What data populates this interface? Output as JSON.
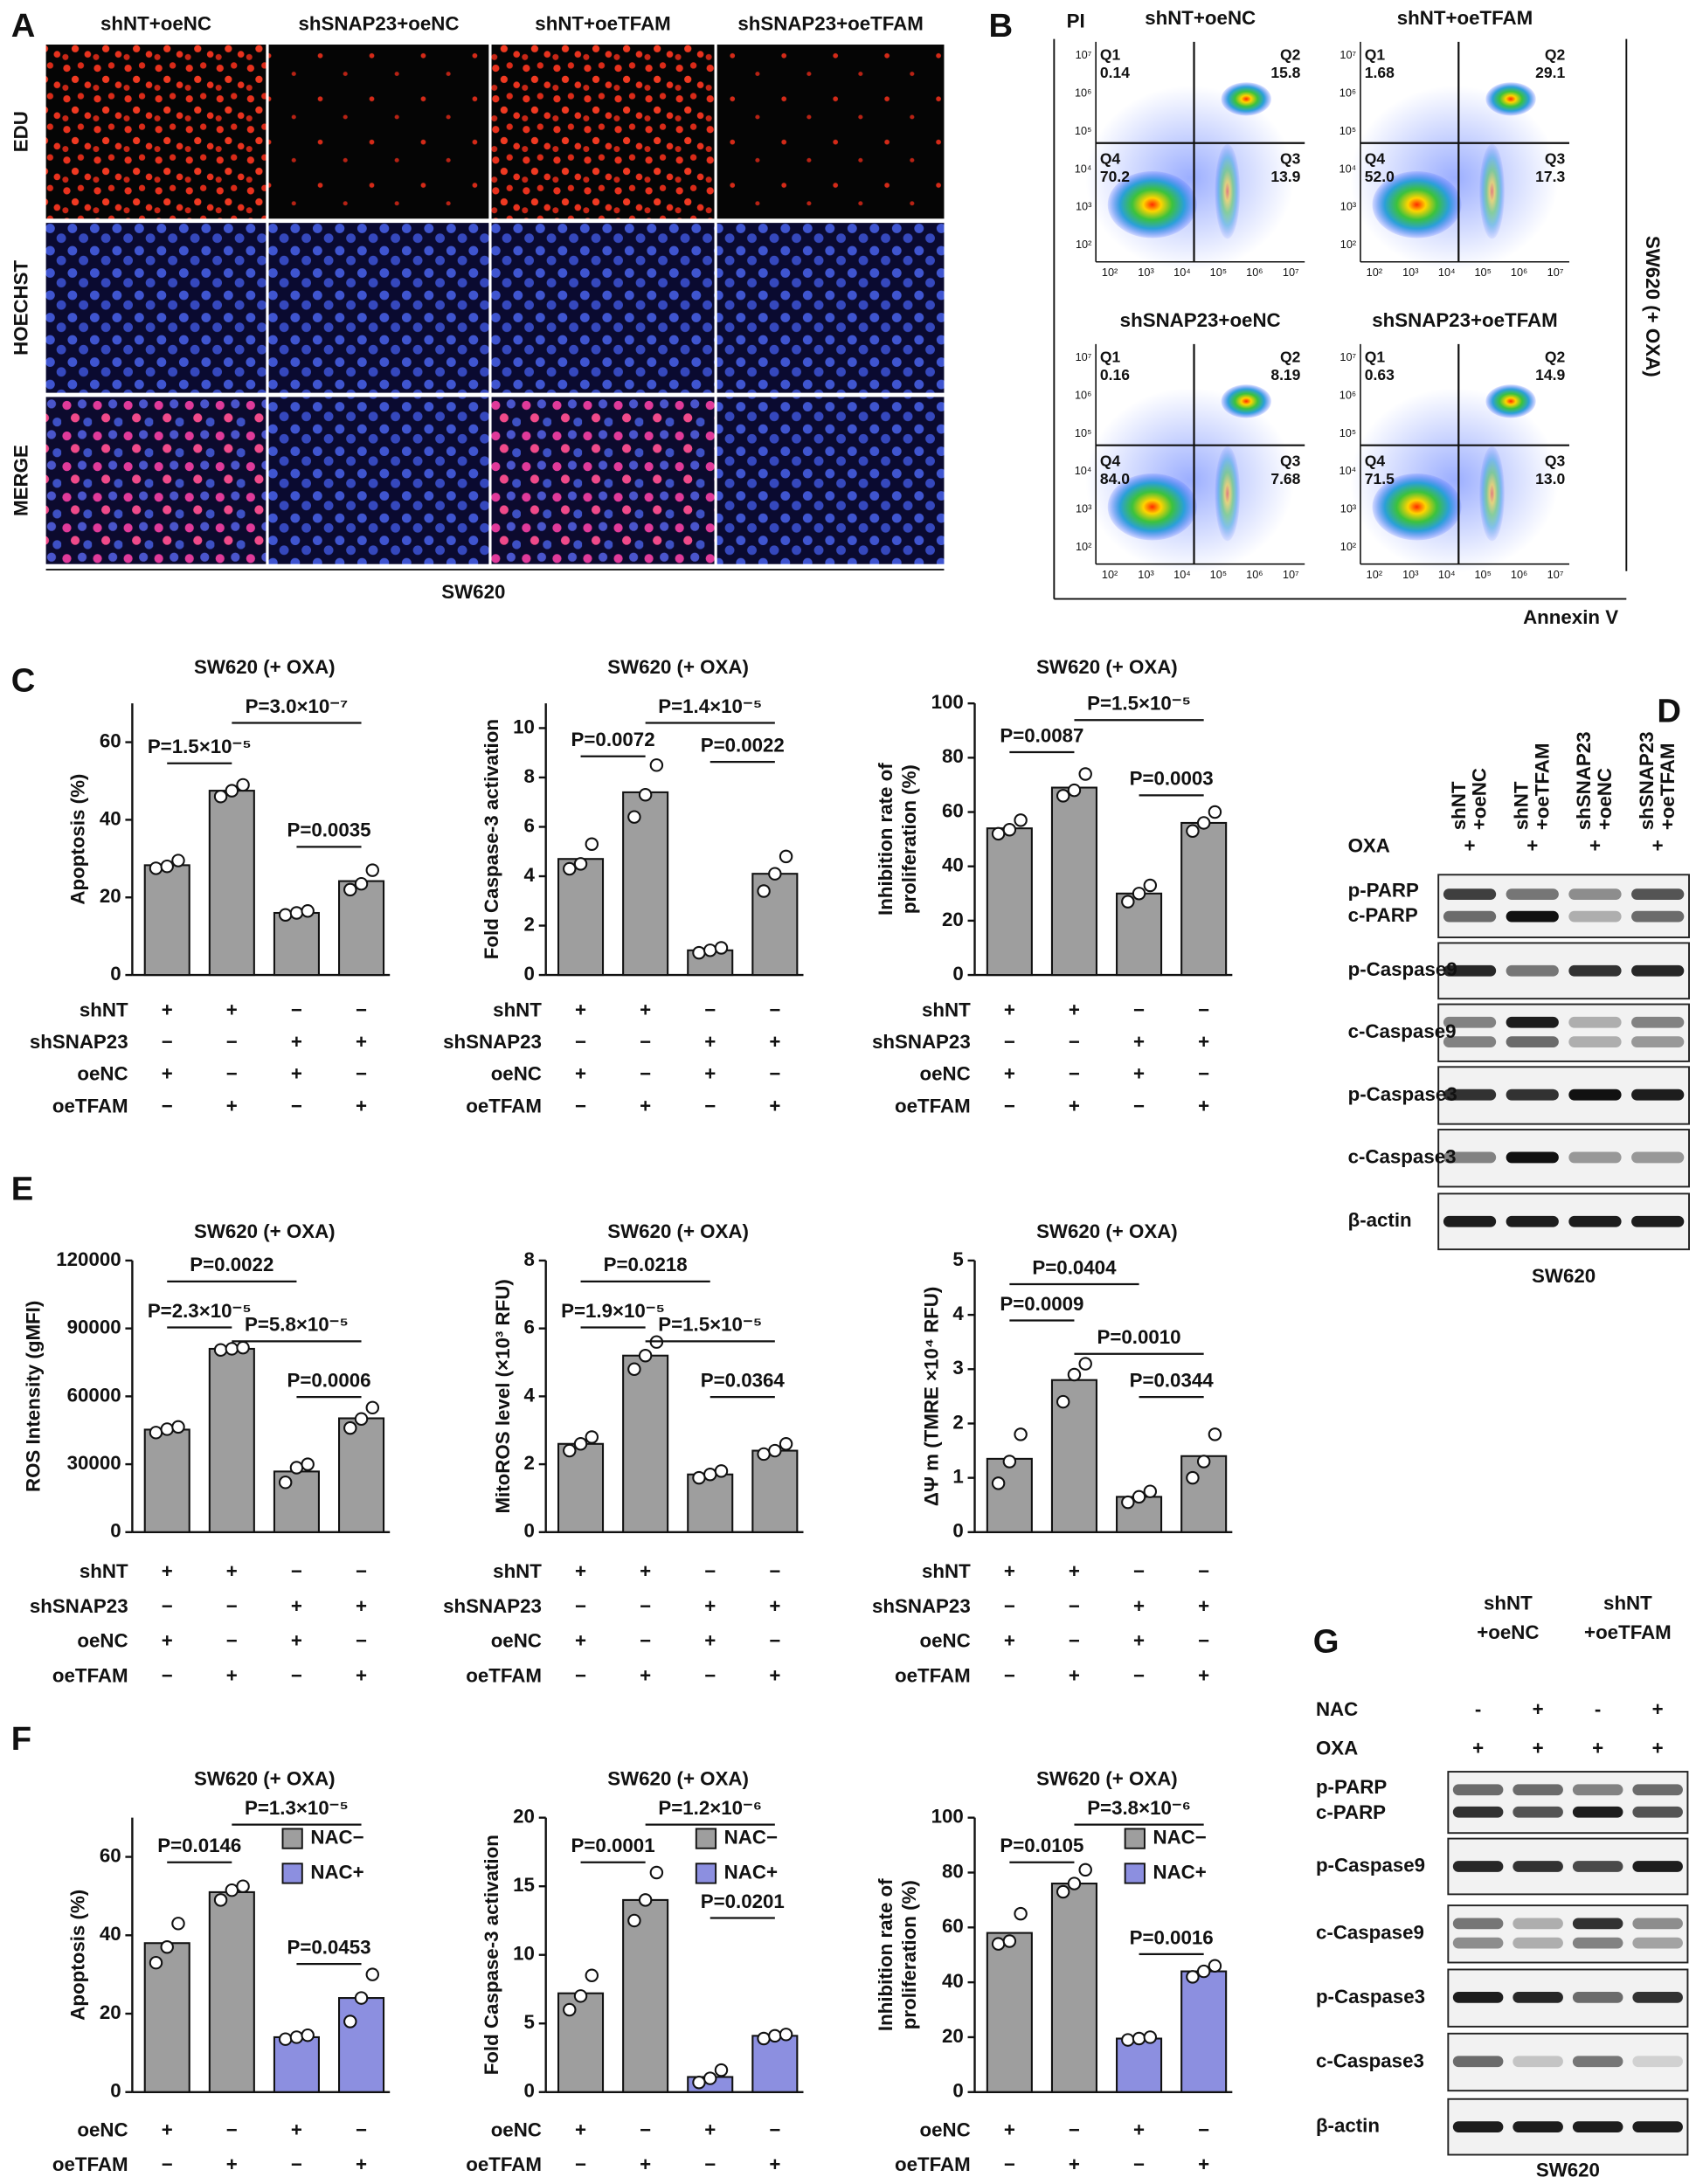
{
  "panel_labels": [
    "A",
    "B",
    "C",
    "D",
    "E",
    "F",
    "G"
  ],
  "panel_a": {
    "columns": [
      "shNT+oeNC",
      "shSNAP23+oeNC",
      "shNT+oeTFAM",
      "shSNAP23+oeTFAM"
    ],
    "rows": [
      "EDU",
      "HOECHST",
      "MERGE"
    ],
    "cell_line": "SW620"
  },
  "panel_b": {
    "y_label": "PI",
    "x_label": "Annexin V",
    "side_label": "SW620 (+ OXA)",
    "ticks": [
      "10²",
      "10³",
      "10⁴",
      "10⁵",
      "10⁶",
      "10⁷"
    ],
    "plots": [
      {
        "title": "shNT+oeNC",
        "quadrants": [
          {
            "name": "Q1",
            "value": "0.14"
          },
          {
            "name": "Q2",
            "value": "15.8"
          },
          {
            "name": "Q3",
            "value": "13.9"
          },
          {
            "name": "Q4",
            "value": "70.2"
          }
        ]
      },
      {
        "title": "shNT+oeTFAM",
        "quadrants": [
          {
            "name": "Q1",
            "value": "1.68"
          },
          {
            "name": "Q2",
            "value": "29.1"
          },
          {
            "name": "Q3",
            "value": "17.3"
          },
          {
            "name": "Q4",
            "value": "52.0"
          }
        ]
      },
      {
        "title": "shSNAP23+oeNC",
        "quadrants": [
          {
            "name": "Q1",
            "value": "0.16"
          },
          {
            "name": "Q2",
            "value": "8.19"
          },
          {
            "name": "Q3",
            "value": "7.68"
          },
          {
            "name": "Q4",
            "value": "84.0"
          }
        ]
      },
      {
        "title": "shSNAP23+oeTFAM",
        "quadrants": [
          {
            "name": "Q1",
            "value": "0.63"
          },
          {
            "name": "Q2",
            "value": "14.9"
          },
          {
            "name": "Q3",
            "value": "13.0"
          },
          {
            "name": "Q4",
            "value": "71.5"
          }
        ]
      }
    ]
  },
  "chart_data": [
    {
      "type": "bar",
      "title": "SW620 (+ OXA)",
      "y_label": "Apoptosis (%)",
      "ylim": [
        0,
        70
      ],
      "yticks": [
        0,
        20,
        40,
        60
      ],
      "values": [
        28.3,
        47.5,
        16,
        24.2
      ],
      "replicates": [
        [
          27.5,
          28,
          29.5
        ],
        [
          46,
          47.5,
          49
        ],
        [
          15.5,
          16,
          16.5
        ],
        [
          22,
          23.5,
          27
        ]
      ],
      "colors": [
        "#9e9e9e",
        "#9e9e9e",
        "#9e9e9e",
        "#9e9e9e"
      ],
      "p_values": [
        "P=3.0×10⁻⁷",
        "P=1.5×10⁻⁵",
        "P=0.0035"
      ],
      "conditions": [
        {
          "name": "shNT",
          "signs": [
            "+",
            "+",
            "−",
            "−"
          ]
        },
        {
          "name": "shSNAP23",
          "signs": [
            "−",
            "−",
            "+",
            "+"
          ]
        },
        {
          "name": "oeNC",
          "signs": [
            "+",
            "−",
            "+",
            "−"
          ]
        },
        {
          "name": "oeTFAM",
          "signs": [
            "−",
            "+",
            "−",
            "+"
          ]
        }
      ]
    },
    {
      "type": "bar",
      "title": "SW620 (+ OXA)",
      "y_label": "Fold Caspase-3 activation",
      "ylim": [
        0,
        11
      ],
      "yticks": [
        0,
        2,
        4,
        6,
        8,
        10
      ],
      "values": [
        4.7,
        7.4,
        1.0,
        4.1
      ],
      "replicates": [
        [
          4.3,
          4.5,
          5.3
        ],
        [
          6.4,
          7.3,
          8.5
        ],
        [
          0.9,
          1.0,
          1.1
        ],
        [
          3.4,
          4.1,
          4.8
        ]
      ],
      "colors": [
        "#9e9e9e",
        "#9e9e9e",
        "#9e9e9e",
        "#9e9e9e"
      ],
      "p_values": [
        "P=1.4×10⁻⁵",
        "P=0.0072",
        "P=0.0022"
      ],
      "conditions": [
        {
          "name": "shNT",
          "signs": [
            "+",
            "+",
            "−",
            "−"
          ]
        },
        {
          "name": "shSNAP23",
          "signs": [
            "−",
            "−",
            "+",
            "+"
          ]
        },
        {
          "name": "oeNC",
          "signs": [
            "+",
            "−",
            "+",
            "−"
          ]
        },
        {
          "name": "oeTFAM",
          "signs": [
            "−",
            "+",
            "−",
            "+"
          ]
        }
      ]
    },
    {
      "type": "bar",
      "title": "SW620 (+ OXA)",
      "y_label": [
        "Inhibition rate of",
        "proliferation (%)"
      ],
      "ylim": [
        0,
        100
      ],
      "yticks": [
        0,
        20,
        40,
        60,
        80,
        100
      ],
      "values": [
        54,
        69,
        30,
        56
      ],
      "replicates": [
        [
          52,
          53.5,
          57
        ],
        [
          66,
          68,
          74
        ],
        [
          27,
          30,
          33
        ],
        [
          53,
          56,
          60
        ]
      ],
      "colors": [
        "#9e9e9e",
        "#9e9e9e",
        "#9e9e9e",
        "#9e9e9e"
      ],
      "p_values": [
        "P=1.5×10⁻⁵",
        "P=0.0087",
        "P=0.0003"
      ],
      "conditions": [
        {
          "name": "shNT",
          "signs": [
            "+",
            "+",
            "−",
            "−"
          ]
        },
        {
          "name": "shSNAP23",
          "signs": [
            "−",
            "−",
            "+",
            "+"
          ]
        },
        {
          "name": "oeNC",
          "signs": [
            "+",
            "−",
            "+",
            "−"
          ]
        },
        {
          "name": "oeTFAM",
          "signs": [
            "−",
            "+",
            "−",
            "+"
          ]
        }
      ]
    },
    {
      "type": "bar",
      "title": "SW620 (+ OXA)",
      "y_label": "ROS Intensity (gMFI)",
      "ylim": [
        0,
        120000
      ],
      "yticks": [
        0,
        30000,
        60000,
        90000,
        120000
      ],
      "values": [
        45300,
        81000,
        26800,
        50300
      ],
      "replicates": [
        [
          44000,
          45500,
          46500
        ],
        [
          80500,
          81000,
          81500
        ],
        [
          22000,
          28500,
          30000
        ],
        [
          46000,
          50000,
          55000
        ]
      ],
      "colors": [
        "#9e9e9e",
        "#9e9e9e",
        "#9e9e9e",
        "#9e9e9e"
      ],
      "p_values": [
        "P=0.0022",
        "P=2.3×10⁻⁵",
        "P=5.8×10⁻⁵",
        "P=0.0006"
      ],
      "conditions": [
        {
          "name": "shNT",
          "signs": [
            "+",
            "+",
            "−",
            "−"
          ]
        },
        {
          "name": "shSNAP23",
          "signs": [
            "−",
            "−",
            "+",
            "+"
          ]
        },
        {
          "name": "oeNC",
          "signs": [
            "+",
            "−",
            "+",
            "−"
          ]
        },
        {
          "name": "oeTFAM",
          "signs": [
            "−",
            "+",
            "−",
            "+"
          ]
        }
      ]
    },
    {
      "type": "bar",
      "title": "SW620 (+ OXA)",
      "y_label": "MitoROS level (×10³ RFU)",
      "ylim": [
        0,
        8
      ],
      "yticks": [
        0,
        2,
        4,
        6,
        8
      ],
      "values": [
        2.6,
        5.2,
        1.7,
        2.4
      ],
      "replicates": [
        [
          2.4,
          2.6,
          2.8
        ],
        [
          4.8,
          5.2,
          5.6
        ],
        [
          1.6,
          1.7,
          1.8
        ],
        [
          2.3,
          2.4,
          2.6
        ]
      ],
      "colors": [
        "#9e9e9e",
        "#9e9e9e",
        "#9e9e9e",
        "#9e9e9e"
      ],
      "p_values": [
        "P=0.0218",
        "P=1.9×10⁻⁵",
        "P=1.5×10⁻⁵",
        "P=0.0364"
      ],
      "conditions": [
        {
          "name": "shNT",
          "signs": [
            "+",
            "+",
            "−",
            "−"
          ]
        },
        {
          "name": "shSNAP23",
          "signs": [
            "−",
            "−",
            "+",
            "+"
          ]
        },
        {
          "name": "oeNC",
          "signs": [
            "+",
            "−",
            "+",
            "−"
          ]
        },
        {
          "name": "oeTFAM",
          "signs": [
            "−",
            "+",
            "−",
            "+"
          ]
        }
      ]
    },
    {
      "type": "bar",
      "title": "SW620 (+ OXA)",
      "y_label": "ΔΨ m (TMRE ×10⁴ RFU)",
      "ylim": [
        0,
        5
      ],
      "yticks": [
        0,
        1,
        2,
        3,
        4,
        5
      ],
      "values": [
        1.35,
        2.8,
        0.65,
        1.4
      ],
      "replicates": [
        [
          0.9,
          1.3,
          1.8
        ],
        [
          2.4,
          2.9,
          3.1
        ],
        [
          0.55,
          0.65,
          0.75
        ],
        [
          1.0,
          1.3,
          1.8
        ]
      ],
      "colors": [
        "#9e9e9e",
        "#9e9e9e",
        "#9e9e9e",
        "#9e9e9e"
      ],
      "p_values": [
        "P=0.0404",
        "P=0.0009",
        "P=0.0010",
        "P=0.0344"
      ],
      "conditions": [
        {
          "name": "shNT",
          "signs": [
            "+",
            "+",
            "−",
            "−"
          ]
        },
        {
          "name": "shSNAP23",
          "signs": [
            "−",
            "−",
            "+",
            "+"
          ]
        },
        {
          "name": "oeNC",
          "signs": [
            "+",
            "−",
            "+",
            "−"
          ]
        },
        {
          "name": "oeTFAM",
          "signs": [
            "−",
            "+",
            "−",
            "+"
          ]
        }
      ]
    },
    {
      "type": "bar",
      "title": "SW620 (+ OXA)",
      "y_label": "Apoptosis (%)",
      "ylim": [
        0,
        70
      ],
      "yticks": [
        0,
        20,
        40,
        60
      ],
      "values": [
        38,
        51,
        14,
        24
      ],
      "replicates": [
        [
          33,
          37,
          43
        ],
        [
          49,
          51.5,
          52.5
        ],
        [
          13.5,
          14,
          14.5
        ],
        [
          18,
          24,
          30
        ]
      ],
      "colors": [
        "#9e9e9e",
        "#9e9e9e",
        "#8c8fe0",
        "#8c8fe0"
      ],
      "legend": [
        {
          "name": "NAC−",
          "color": "#9e9e9e"
        },
        {
          "name": "NAC+",
          "color": "#8c8fe0"
        }
      ],
      "p_values": [
        "P=1.3×10⁻⁵",
        "P=0.0146",
        "P=0.0453"
      ],
      "conditions": [
        {
          "name": "oeNC",
          "signs": [
            "+",
            "−",
            "+",
            "−"
          ]
        },
        {
          "name": "oeTFAM",
          "signs": [
            "−",
            "+",
            "−",
            "+"
          ]
        }
      ]
    },
    {
      "type": "bar",
      "title": "SW620 (+ OXA)",
      "y_label": "Fold Caspase-3 activation",
      "ylim": [
        0,
        20
      ],
      "yticks": [
        0,
        5,
        10,
        15,
        20
      ],
      "values": [
        7.2,
        14,
        1.1,
        4.1
      ],
      "replicates": [
        [
          6,
          7,
          8.5
        ],
        [
          12.5,
          14,
          16
        ],
        [
          0.7,
          1,
          1.6
        ],
        [
          3.9,
          4.1,
          4.2
        ]
      ],
      "colors": [
        "#9e9e9e",
        "#9e9e9e",
        "#8c8fe0",
        "#8c8fe0"
      ],
      "legend": [
        {
          "name": "NAC−",
          "color": "#9e9e9e"
        },
        {
          "name": "NAC+",
          "color": "#8c8fe0"
        }
      ],
      "p_values": [
        "P=1.2×10⁻⁶",
        "P=0.0001",
        "P=0.0201"
      ],
      "conditions": [
        {
          "name": "oeNC",
          "signs": [
            "+",
            "−",
            "+",
            "−"
          ]
        },
        {
          "name": "oeTFAM",
          "signs": [
            "−",
            "+",
            "−",
            "+"
          ]
        }
      ]
    },
    {
      "type": "bar",
      "title": "SW620 (+ OXA)",
      "y_label": [
        "Inhibition rate of",
        "proliferation (%)"
      ],
      "ylim": [
        0,
        100
      ],
      "yticks": [
        0,
        20,
        40,
        60,
        80,
        100
      ],
      "values": [
        58,
        76,
        19.5,
        44
      ],
      "replicates": [
        [
          54,
          55,
          65
        ],
        [
          73,
          76,
          81
        ],
        [
          19,
          19.5,
          20
        ],
        [
          42,
          44,
          46
        ]
      ],
      "colors": [
        "#9e9e9e",
        "#9e9e9e",
        "#8c8fe0",
        "#8c8fe0"
      ],
      "legend": [
        {
          "name": "NAC−",
          "color": "#9e9e9e"
        },
        {
          "name": "NAC+",
          "color": "#8c8fe0"
        }
      ],
      "p_values": [
        "P=3.8×10⁻⁶",
        "P=0.0105",
        "P=0.0016"
      ],
      "conditions": [
        {
          "name": "oeNC",
          "signs": [
            "+",
            "−",
            "+",
            "−"
          ]
        },
        {
          "name": "oeTFAM",
          "signs": [
            "−",
            "+",
            "−",
            "+"
          ]
        }
      ]
    }
  ],
  "panel_d": {
    "columns": [
      [
        "shNT",
        "+oeNC"
      ],
      [
        "shNT",
        "+oeTFAM"
      ],
      [
        "shSNAP23",
        "+oeNC"
      ],
      [
        "shSNAP23",
        "+oeTFAM"
      ]
    ],
    "treatments": [
      {
        "name": "OXA",
        "signs": [
          "+",
          "+",
          "+",
          "+"
        ]
      }
    ],
    "blots": [
      [
        "p-PARP",
        "c-PARP"
      ],
      [
        "p-Caspase9"
      ],
      [
        "c-Caspase9"
      ],
      [
        "p-Caspase3"
      ],
      [
        "c-Caspase3"
      ],
      [
        "β-actin"
      ]
    ],
    "cell_line": "SW620"
  },
  "panel_g": {
    "columns": [
      [
        "shNT",
        "+oeNC"
      ],
      [
        "shNT",
        "+oeTFAM"
      ]
    ],
    "treatments": [
      {
        "name": "NAC",
        "signs": [
          "-",
          "+",
          "-",
          "+"
        ]
      },
      {
        "name": "OXA",
        "signs": [
          "+",
          "+",
          "+",
          "+"
        ]
      }
    ],
    "blots": [
      [
        "p-PARP",
        "c-PARP"
      ],
      [
        "p-Caspase9"
      ],
      [
        "c-Caspase9"
      ],
      [
        "p-Caspase3"
      ],
      [
        "c-Caspase3"
      ],
      [
        "β-actin"
      ]
    ],
    "cell_line": "SW620"
  }
}
